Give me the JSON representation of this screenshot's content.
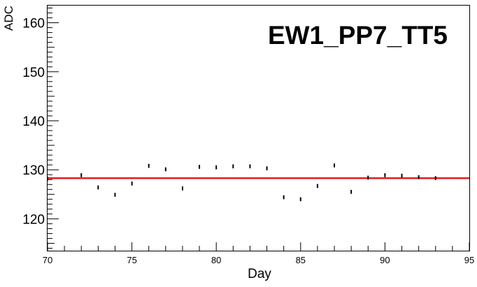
{
  "chart_data": {
    "type": "scatter",
    "title": "EW1_PP7_TT5",
    "xlabel": "Day",
    "ylabel": "ADC",
    "xlim": [
      70,
      95
    ],
    "ylim": [
      113.5,
      163.5
    ],
    "x_major_ticks": [
      70,
      75,
      80,
      85,
      90,
      95
    ],
    "y_major_ticks": [
      120,
      130,
      140,
      150,
      160
    ],
    "grid": false,
    "legend": "none",
    "series": [
      {
        "x": [
          70,
          72,
          73,
          74,
          75,
          76,
          77,
          78,
          79,
          80,
          81,
          82,
          83,
          84,
          85,
          86,
          87,
          88,
          89,
          90,
          91,
          92,
          93
        ],
        "y": [
          128.2,
          128.9,
          126.4,
          124.9,
          127.2,
          130.8,
          130.1,
          126.2,
          130.6,
          130.5,
          130.7,
          130.7,
          130.3,
          124.4,
          124.0,
          126.7,
          130.9,
          125.5,
          128.4,
          128.9,
          128.8,
          128.5,
          128.3
        ],
        "error": 0.4,
        "color": "#000000"
      }
    ],
    "reference_line": {
      "y": 128.3,
      "color": "#e8191e"
    }
  }
}
